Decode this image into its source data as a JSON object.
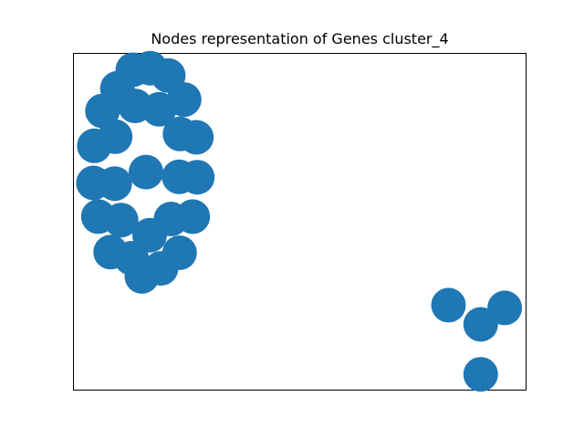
{
  "chart_data": {
    "type": "scatter",
    "title": "Nodes representation of Genes cluster_4",
    "xlabel": "",
    "ylabel": "",
    "axes": {
      "ticks": false,
      "grid": false,
      "frame": true
    },
    "series": [
      {
        "node_color": "#1f77b4",
        "points": [
          {
            "x": 0.132,
            "y": 0.95
          },
          {
            "x": 0.17,
            "y": 0.955
          },
          {
            "x": 0.21,
            "y": 0.933
          },
          {
            "x": 0.098,
            "y": 0.895
          },
          {
            "x": 0.245,
            "y": 0.862
          },
          {
            "x": 0.137,
            "y": 0.843
          },
          {
            "x": 0.19,
            "y": 0.833
          },
          {
            "x": 0.065,
            "y": 0.828
          },
          {
            "x": 0.236,
            "y": 0.76
          },
          {
            "x": 0.093,
            "y": 0.752
          },
          {
            "x": 0.272,
            "y": 0.75
          },
          {
            "x": 0.047,
            "y": 0.725
          },
          {
            "x": 0.161,
            "y": 0.647
          },
          {
            "x": 0.234,
            "y": 0.633
          },
          {
            "x": 0.274,
            "y": 0.632
          },
          {
            "x": 0.045,
            "y": 0.615
          },
          {
            "x": 0.092,
            "y": 0.613
          },
          {
            "x": 0.056,
            "y": 0.515
          },
          {
            "x": 0.106,
            "y": 0.505
          },
          {
            "x": 0.216,
            "y": 0.508
          },
          {
            "x": 0.264,
            "y": 0.515
          },
          {
            "x": 0.169,
            "y": 0.46
          },
          {
            "x": 0.083,
            "y": 0.41
          },
          {
            "x": 0.129,
            "y": 0.392
          },
          {
            "x": 0.235,
            "y": 0.408
          },
          {
            "x": 0.194,
            "y": 0.362
          },
          {
            "x": 0.152,
            "y": 0.338
          },
          {
            "x": 0.828,
            "y": 0.253
          },
          {
            "x": 0.952,
            "y": 0.245
          },
          {
            "x": 0.899,
            "y": 0.196
          },
          {
            "x": 0.899,
            "y": 0.048
          }
        ]
      }
    ]
  }
}
